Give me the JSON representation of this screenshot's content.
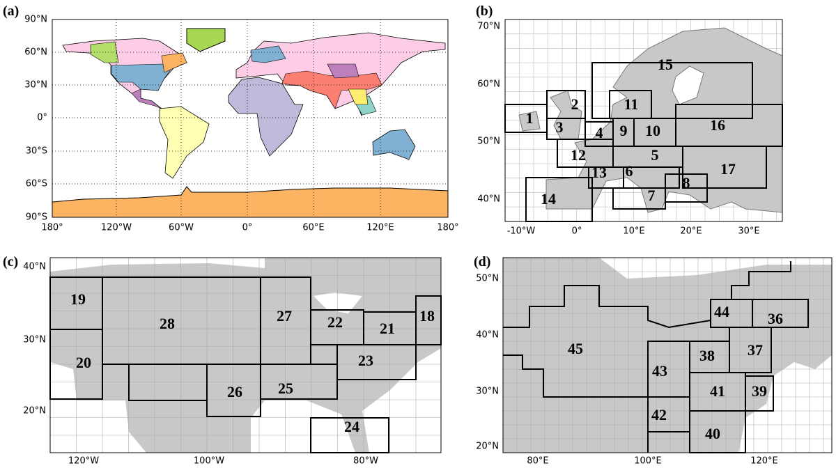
{
  "panels": [
    {
      "label": "(a)",
      "x_labels": [
        "180°",
        "120°W",
        "60°W",
        "0°",
        "60°E",
        "120°E",
        "180°"
      ],
      "y_labels": [
        "90°N",
        "60°N",
        "30°N",
        "0°",
        "30°S",
        "60°S",
        "90°S"
      ]
    },
    {
      "label": "(b)",
      "x_labels": [
        "-10°W",
        "0°",
        "10°E",
        "20°E",
        "30°E"
      ],
      "y_labels": [
        "70°N",
        "60°N",
        "50°N",
        "40°N"
      ],
      "regions": [
        "1",
        "2",
        "3",
        "4",
        "5",
        "6",
        "7",
        "8",
        "9",
        "10",
        "11",
        "12",
        "13",
        "14",
        "15",
        "16",
        "17"
      ]
    },
    {
      "label": "(c)",
      "x_labels": [
        "120°W",
        "100°W",
        "80°W"
      ],
      "y_labels": [
        "40°N",
        "30°N",
        "20°N"
      ],
      "regions": [
        "18",
        "19",
        "20",
        "21",
        "22",
        "23",
        "24",
        "25",
        "26",
        "27",
        "28"
      ]
    },
    {
      "label": "(d)",
      "x_labels": [
        "80°E",
        "100°E",
        "120°E"
      ],
      "y_labels": [
        "50°N",
        "40°N",
        "30°N",
        "20°N"
      ],
      "regions": [
        "36",
        "37",
        "38",
        "39",
        "40",
        "41",
        "42",
        "43",
        "44",
        "45"
      ]
    }
  ]
}
